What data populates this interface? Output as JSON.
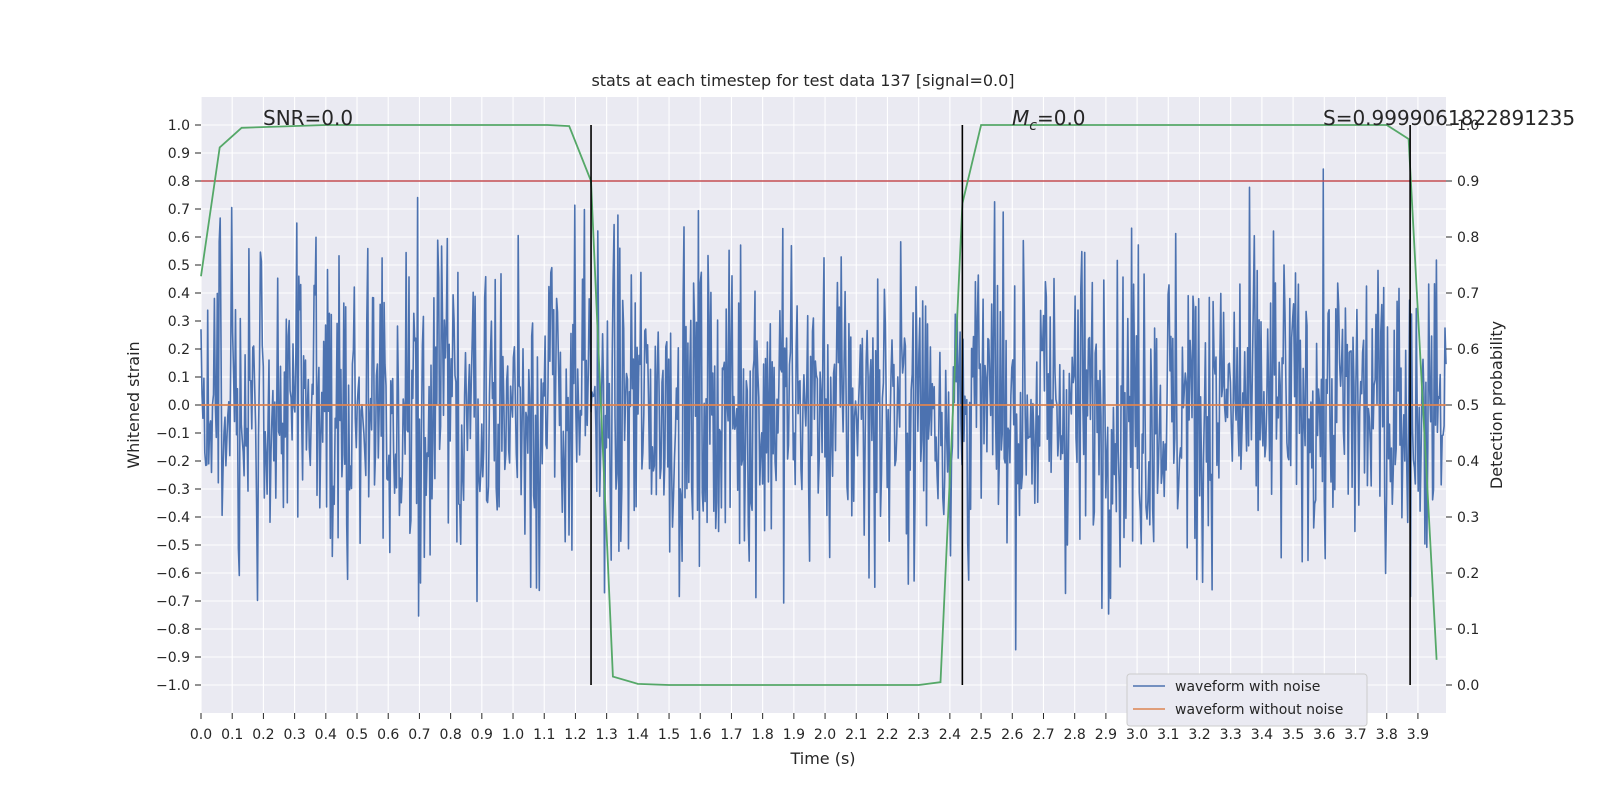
{
  "chart_data": {
    "type": "line",
    "title": "stats at each timestep for test data 137 [signal=0.0]",
    "xlabel": "Time (s)",
    "ylabel": "Whitened strain",
    "y2label": "Detection probability",
    "xlim": [
      0.0,
      3.99
    ],
    "ylim": [
      -1.1,
      1.1
    ],
    "y2lim": [
      -0.05,
      1.05
    ],
    "x_ticks": [
      "0.0",
      "0.1",
      "0.2",
      "0.3",
      "0.4",
      "0.5",
      "0.6",
      "0.7",
      "0.8",
      "0.9",
      "1.0",
      "1.1",
      "1.2",
      "1.3",
      "1.4",
      "1.5",
      "1.6",
      "1.7",
      "1.8",
      "1.9",
      "2.0",
      "2.1",
      "2.2",
      "2.3",
      "2.4",
      "2.5",
      "2.6",
      "2.7",
      "2.8",
      "2.9",
      "3.0",
      "3.1",
      "3.2",
      "3.3",
      "3.4",
      "3.5",
      "3.6",
      "3.7",
      "3.8",
      "3.9"
    ],
    "y_ticks": [
      "1.0",
      "0.9",
      "0.8",
      "0.7",
      "0.6",
      "0.5",
      "0.4",
      "0.3",
      "0.2",
      "0.1",
      "0.0",
      "−0.1",
      "−0.2",
      "−0.3",
      "−0.4",
      "−0.5",
      "−0.6",
      "−0.7",
      "−0.8",
      "−0.9",
      "−1.0"
    ],
    "y2_ticks": [
      "1.0",
      "0.9",
      "0.8",
      "0.7",
      "0.6",
      "0.5",
      "0.4",
      "0.3",
      "0.2",
      "0.1",
      "0.0"
    ],
    "grid": true,
    "legend_position": "lower-right",
    "annotations": {
      "snr": "SNR=0.0",
      "mc_symbol": "M",
      "mc_sub": "c",
      "mc_value": "=0.0",
      "stat": "S=0.9999061822891235"
    },
    "series": [
      {
        "name": "waveform with noise",
        "color": "#4c72b0",
        "kind": "noise",
        "y_range": [
          -1.0,
          0.9
        ]
      },
      {
        "name": "waveform without noise",
        "color": "#dd8452",
        "kind": "constant",
        "value": 0.0
      }
    ],
    "detection_probability": {
      "color": "#55a868",
      "x": [
        0.0,
        0.06,
        0.13,
        0.4,
        0.8,
        1.11,
        1.18,
        1.25,
        1.32,
        1.4,
        1.5,
        2.0,
        2.3,
        2.37,
        2.44,
        2.5,
        2.6,
        3.0,
        3.5,
        3.8,
        3.87,
        3.96
      ],
      "y": [
        0.73,
        0.96,
        0.995,
        1.0,
        1.0,
        1.0,
        0.998,
        0.9,
        0.015,
        0.002,
        0.0,
        0.0,
        0.0,
        0.005,
        0.86,
        1.0,
        1.0,
        1.0,
        1.0,
        1.0,
        0.975,
        0.045
      ]
    },
    "threshold": {
      "value": 0.9,
      "axis": "y2",
      "color": "#c44e52"
    },
    "vertical_markers": {
      "x": [
        1.25,
        2.44,
        3.875
      ],
      "color": "#000000"
    }
  }
}
